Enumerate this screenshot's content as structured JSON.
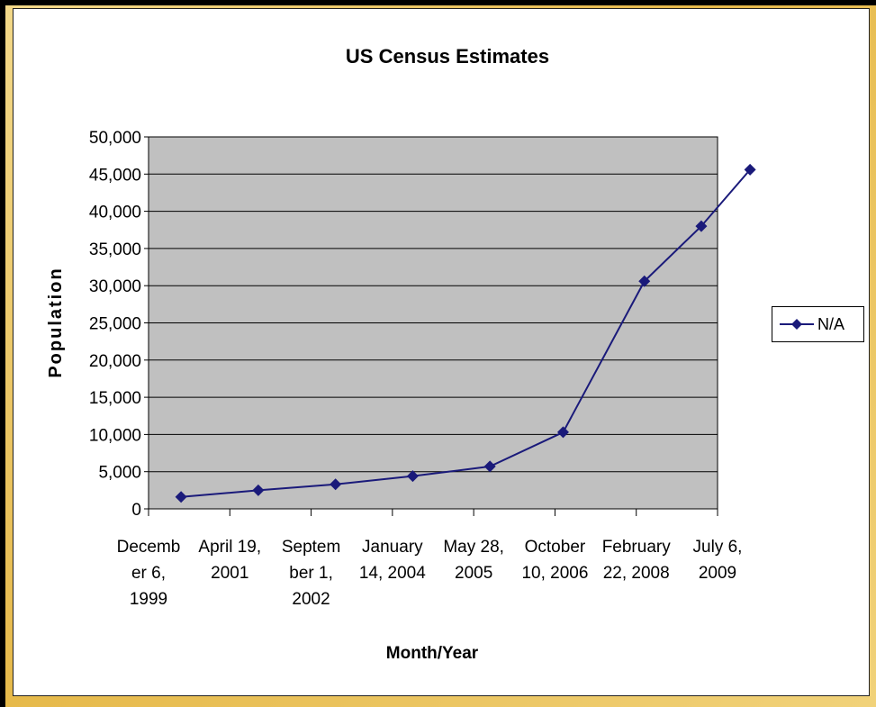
{
  "chart_data": {
    "type": "line",
    "title": "US Census Estimates",
    "xlabel": "Month/Year",
    "ylabel": "Population",
    "ylim": [
      0,
      50000
    ],
    "yticks": [
      "0",
      "5,000",
      "10,000",
      "15,000",
      "20,000",
      "25,000",
      "30,000",
      "35,000",
      "40,000",
      "45,000",
      "50,000"
    ],
    "xtick_labels": [
      [
        "Decemb",
        "er 6,",
        "1999"
      ],
      [
        "April 19,",
        "2001"
      ],
      [
        "Septem",
        "ber 1,",
        "2002"
      ],
      [
        "January",
        "14, 2004"
      ],
      [
        "May 28,",
        "2005"
      ],
      [
        "October",
        "10, 2006"
      ],
      [
        "February",
        "22, 2008"
      ],
      [
        "July 6,",
        "2009"
      ]
    ],
    "x": [
      0.4,
      1.35,
      2.3,
      3.25,
      4.2,
      5.1,
      6.1,
      6.8,
      7.4
    ],
    "series": [
      {
        "name": "N/A",
        "color": "#1a1a7a",
        "values": [
          1600,
          2500,
          3300,
          4400,
          5700,
          10300,
          30600,
          38000,
          45600
        ]
      }
    ],
    "grid": true,
    "plot_background": "#c0c0c0",
    "legend_position": "right"
  }
}
